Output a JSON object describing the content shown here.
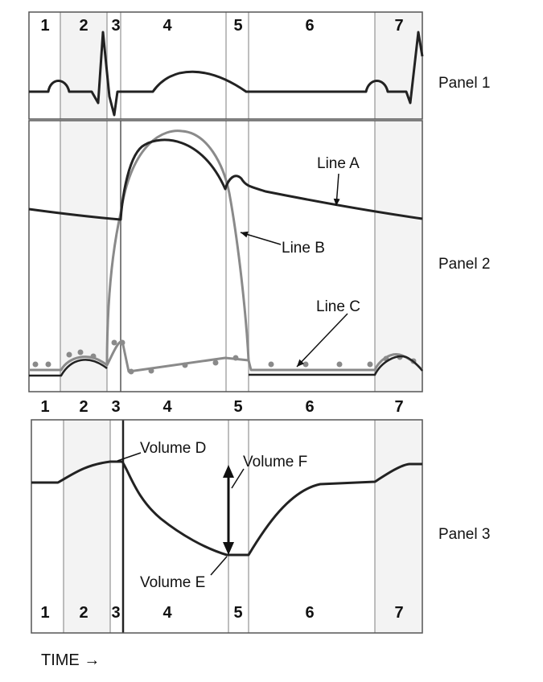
{
  "panels": [
    {
      "id": "panel-1",
      "label": "Panel 1"
    },
    {
      "id": "panel-2",
      "label": "Panel 2"
    },
    {
      "id": "panel-3",
      "label": "Panel 3"
    }
  ],
  "phases": [
    "1",
    "2",
    "3",
    "4",
    "5",
    "6",
    "7"
  ],
  "annotations": {
    "line_a": "Line A",
    "line_b": "Line B",
    "line_c": "Line C",
    "volume_d": "Volume D",
    "volume_e": "Volume E",
    "volume_f": "Volume F"
  },
  "time_axis_label": "TIME →",
  "colors": {
    "dark_trace": "#222222",
    "light_trace": "#8a8a8a",
    "phase_divider": "#a8a8a8",
    "shaded_phase": "#f2f2f2",
    "frame": "#555555"
  }
}
